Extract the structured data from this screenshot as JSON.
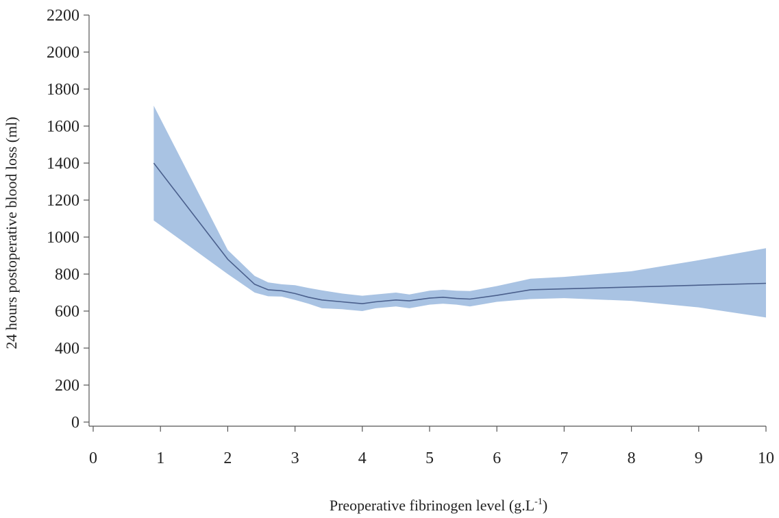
{
  "chart_data": {
    "type": "line",
    "xlabel": {
      "main": "Preoperative fibrinogen level (g.L",
      "sup": "-1",
      "close": ")"
    },
    "ylabel": "24 hours postoperative blood loss (ml)",
    "xlim": [
      0,
      10
    ],
    "ylim": [
      0,
      2200
    ],
    "x_ticks": [
      "0",
      "1",
      "2",
      "3",
      "4",
      "5",
      "6",
      "7",
      "8",
      "9",
      "10"
    ],
    "y_ticks": [
      "0",
      "200",
      "400",
      "600",
      "800",
      "1000",
      "1200",
      "1400",
      "1600",
      "1800",
      "2000",
      "2200"
    ],
    "grid": false,
    "legend": "none",
    "colors": {
      "line": "#4a5f8c",
      "band": "#a9c3e3",
      "axis": "#555555"
    },
    "series": [
      {
        "x": [
          0.9,
          2.0,
          2.4,
          2.6,
          2.8,
          3.0,
          3.2,
          3.4,
          3.7,
          4.0,
          4.2,
          4.5,
          4.7,
          5.0,
          5.2,
          5.4,
          5.6,
          6.0,
          6.5,
          7.0,
          8.0,
          9.0,
          10.0
        ],
        "y": [
          1400,
          880,
          745,
          715,
          710,
          695,
          675,
          660,
          650,
          640,
          650,
          660,
          655,
          670,
          675,
          668,
          665,
          685,
          715,
          720,
          730,
          740,
          750
        ],
        "lower": [
          1090,
          800,
          700,
          680,
          678,
          660,
          640,
          615,
          610,
          600,
          615,
          625,
          615,
          635,
          640,
          635,
          625,
          650,
          665,
          670,
          655,
          620,
          565
        ],
        "upper": [
          1710,
          930,
          790,
          755,
          745,
          740,
          725,
          712,
          695,
          683,
          690,
          700,
          690,
          710,
          715,
          710,
          708,
          735,
          775,
          785,
          815,
          875,
          940
        ]
      }
    ]
  }
}
